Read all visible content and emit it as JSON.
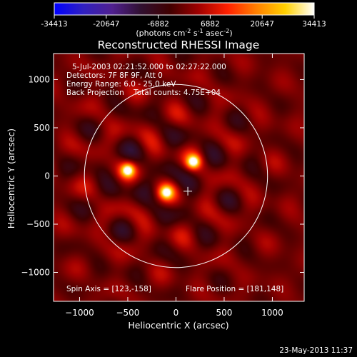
{
  "colorbar": {
    "ticks": [
      "-34413",
      "-20647",
      "-6882",
      "6882",
      "20647",
      "34413"
    ],
    "unit_parts": [
      "(photons cm",
      "-2",
      " s",
      "-1",
      " asec",
      "-2",
      ")"
    ],
    "stops": [
      "#0000ff",
      "#3020c0",
      "#502090",
      "#301030",
      "#400000",
      "#a00000",
      "#ff2000",
      "#ff8000",
      "#ffd000",
      "#ffffff"
    ]
  },
  "chart_data": {
    "type": "heatmap",
    "title": "Reconstructed RHESSI Image",
    "xlabel": "Heliocentric X (arcsec)",
    "ylabel": "Heliocentric Y (arcsec)",
    "xlim": [
      -1270,
      1330
    ],
    "ylim": [
      -1300,
      1270
    ],
    "xticks": [
      -1000,
      -500,
      0,
      500,
      1000
    ],
    "yticks": [
      -1000,
      -500,
      0,
      500,
      1000
    ],
    "annotations": [
      "5-Jul-2003 02:21:52.000 to 02:27:22.000",
      "Detectors: 7F 8F 9F, Att 0",
      "Energy Range: 6.0 - 25.0 keV",
      "Back Projection    Total counts: 4.75E+04"
    ],
    "spin_axis_label": "Spin Axis = [123,-158]",
    "flare_position_label": "Flare Position = [181,148]",
    "spin_axis": [
      123,
      -158
    ],
    "flare_position": [
      181,
      148
    ],
    "solar_limb": {
      "center": [
        0,
        0
      ],
      "radius": 950
    },
    "sources": [
      {
        "x": 181,
        "y": 148,
        "strength": 1.0
      },
      {
        "x": -500,
        "y": 60,
        "strength": 0.95
      },
      {
        "x": -100,
        "y": -170,
        "strength": 0.85
      }
    ]
  },
  "footer": {
    "timestamp": "23-May-2013 11:37"
  },
  "colors": {
    "limb": "#ffffff",
    "axes": "#ffffff",
    "background": "#000000"
  }
}
